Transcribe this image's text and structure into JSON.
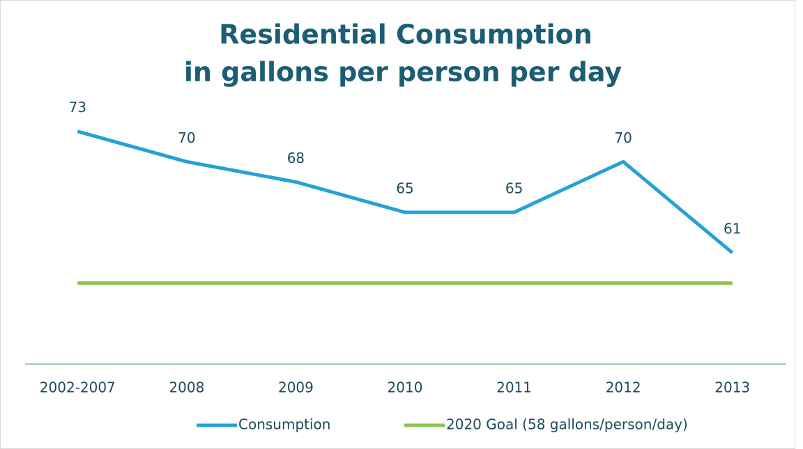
{
  "chart_data": {
    "type": "line",
    "title": [
      "Residential Consumption",
      "in gallons per person per day"
    ],
    "categories": [
      "2002-2007",
      "2008",
      "2009",
      "2010",
      "2011",
      "2012",
      "2013"
    ],
    "series": [
      {
        "name": "Consumption",
        "color": "#26a1d5",
        "values": [
          73,
          70,
          68,
          65,
          65,
          70,
          61
        ],
        "data_labels": true
      },
      {
        "name": "2020 Goal (58 gallons/person/day)",
        "color": "#8dc153",
        "values": [
          58,
          58,
          58,
          58,
          58,
          58,
          58
        ],
        "data_labels": false
      }
    ],
    "ylim": [
      50,
      80
    ],
    "legend": "bottom"
  }
}
